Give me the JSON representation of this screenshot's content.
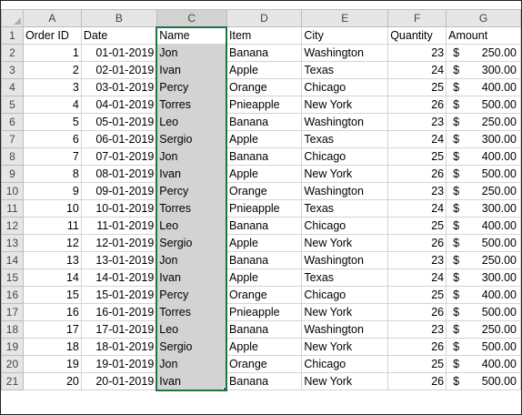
{
  "columns": [
    "A",
    "B",
    "C",
    "D",
    "E",
    "F",
    "G"
  ],
  "selected_column": "C",
  "headers": {
    "row_number": "1",
    "order_id": "Order ID",
    "date": "Date",
    "name": "Name",
    "item": "Item",
    "city": "City",
    "quantity": "Quantity",
    "amount": "Amount"
  },
  "currency_symbol": "$",
  "rows": [
    {
      "row": "2",
      "order_id": "1",
      "date": "01-01-2019",
      "name": "Jon",
      "item": "Banana",
      "city": "Washington",
      "quantity": "23",
      "amount": "250.00"
    },
    {
      "row": "3",
      "order_id": "2",
      "date": "02-01-2019",
      "name": "Ivan",
      "item": "Apple",
      "city": "Texas",
      "quantity": "24",
      "amount": "300.00"
    },
    {
      "row": "4",
      "order_id": "3",
      "date": "03-01-2019",
      "name": "Percy",
      "item": "Orange",
      "city": "Chicago",
      "quantity": "25",
      "amount": "400.00"
    },
    {
      "row": "5",
      "order_id": "4",
      "date": "04-01-2019",
      "name": "Torres",
      "item": "Pnieapple",
      "city": "New York",
      "quantity": "26",
      "amount": "500.00"
    },
    {
      "row": "6",
      "order_id": "5",
      "date": "05-01-2019",
      "name": "Leo",
      "item": "Banana",
      "city": "Washington",
      "quantity": "23",
      "amount": "250.00"
    },
    {
      "row": "7",
      "order_id": "6",
      "date": "06-01-2019",
      "name": "Sergio",
      "item": "Apple",
      "city": "Texas",
      "quantity": "24",
      "amount": "300.00"
    },
    {
      "row": "8",
      "order_id": "7",
      "date": "07-01-2019",
      "name": "Jon",
      "item": "Banana",
      "city": "Chicago",
      "quantity": "25",
      "amount": "400.00"
    },
    {
      "row": "9",
      "order_id": "8",
      "date": "08-01-2019",
      "name": "Ivan",
      "item": "Apple",
      "city": "New York",
      "quantity": "26",
      "amount": "500.00"
    },
    {
      "row": "10",
      "order_id": "9",
      "date": "09-01-2019",
      "name": "Percy",
      "item": "Orange",
      "city": "Washington",
      "quantity": "23",
      "amount": "250.00"
    },
    {
      "row": "11",
      "order_id": "10",
      "date": "10-01-2019",
      "name": "Torres",
      "item": "Pnieapple",
      "city": "Texas",
      "quantity": "24",
      "amount": "300.00"
    },
    {
      "row": "12",
      "order_id": "11",
      "date": "11-01-2019",
      "name": "Leo",
      "item": "Banana",
      "city": "Chicago",
      "quantity": "25",
      "amount": "400.00"
    },
    {
      "row": "13",
      "order_id": "12",
      "date": "12-01-2019",
      "name": "Sergio",
      "item": "Apple",
      "city": "New York",
      "quantity": "26",
      "amount": "500.00"
    },
    {
      "row": "14",
      "order_id": "13",
      "date": "13-01-2019",
      "name": "Jon",
      "item": "Banana",
      "city": "Washington",
      "quantity": "23",
      "amount": "250.00"
    },
    {
      "row": "15",
      "order_id": "14",
      "date": "14-01-2019",
      "name": "Ivan",
      "item": "Apple",
      "city": "Texas",
      "quantity": "24",
      "amount": "300.00"
    },
    {
      "row": "16",
      "order_id": "15",
      "date": "15-01-2019",
      "name": "Percy",
      "item": "Orange",
      "city": "Chicago",
      "quantity": "25",
      "amount": "400.00"
    },
    {
      "row": "17",
      "order_id": "16",
      "date": "16-01-2019",
      "name": "Torres",
      "item": "Pnieapple",
      "city": "New York",
      "quantity": "26",
      "amount": "500.00"
    },
    {
      "row": "18",
      "order_id": "17",
      "date": "17-01-2019",
      "name": "Leo",
      "item": "Banana",
      "city": "Washington",
      "quantity": "23",
      "amount": "250.00"
    },
    {
      "row": "19",
      "order_id": "18",
      "date": "18-01-2019",
      "name": "Sergio",
      "item": "Apple",
      "city": "New York",
      "quantity": "26",
      "amount": "500.00"
    },
    {
      "row": "20",
      "order_id": "19",
      "date": "19-01-2019",
      "name": "Jon",
      "item": "Orange",
      "city": "Chicago",
      "quantity": "25",
      "amount": "400.00"
    },
    {
      "row": "21",
      "order_id": "20",
      "date": "20-01-2019",
      "name": "Ivan",
      "item": "Banana",
      "city": "New York",
      "quantity": "26",
      "amount": "500.00"
    }
  ],
  "colors": {
    "selection_border": "#217346",
    "selection_fill": "#d3d3d3",
    "header_bg": "#e6e6e6"
  }
}
